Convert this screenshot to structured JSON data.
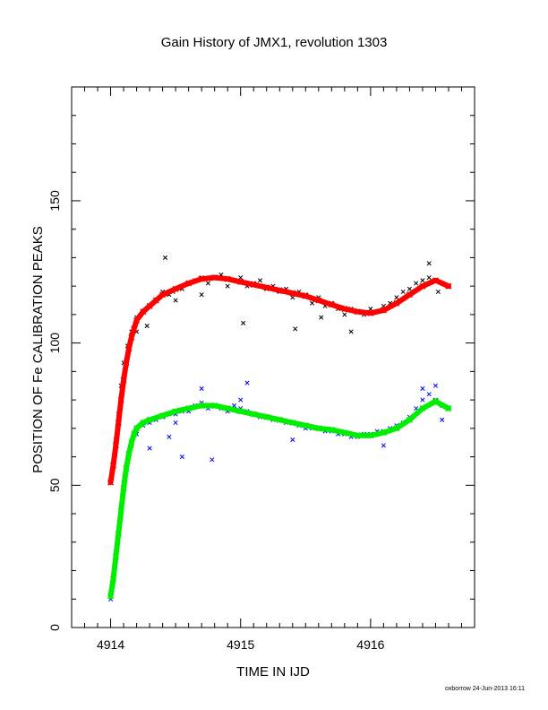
{
  "chart_data": {
    "type": "scatter",
    "title": "Gain History of JMX1, revolution 1303",
    "xlabel": "TIME IN IJD",
    "ylabel": "POSITION OF Fe CALIBRATION PEAKS",
    "footer": "oxborrow 24-Jun-2013 16:11",
    "xlim": [
      4913.7,
      4916.8
    ],
    "ylim": [
      0,
      190
    ],
    "xticks": [
      4914,
      4915,
      4916
    ],
    "xtick_labels": [
      "4914",
      "4915",
      "4916"
    ],
    "yticks": [
      0,
      50,
      100,
      150
    ],
    "ytick_labels": [
      "0",
      "50",
      "100",
      "150"
    ],
    "grid": false,
    "legend": "none",
    "series": [
      {
        "role": "upper peak measurements",
        "color": "#000000",
        "marker": "x",
        "points": [
          [
            4914.0,
            51
          ],
          [
            4914.02,
            57
          ],
          [
            4914.04,
            66
          ],
          [
            4914.06,
            75
          ],
          [
            4914.08,
            85
          ],
          [
            4914.1,
            93
          ],
          [
            4914.13,
            99
          ],
          [
            4914.16,
            104
          ],
          [
            4914.2,
            109
          ],
          [
            4914.25,
            111
          ],
          [
            4914.3,
            113
          ],
          [
            4914.35,
            115
          ],
          [
            4914.4,
            118
          ],
          [
            4914.45,
            117
          ],
          [
            4914.48,
            118
          ],
          [
            4914.5,
            115
          ],
          [
            4914.55,
            119
          ],
          [
            4914.6,
            121
          ],
          [
            4914.65,
            122
          ],
          [
            4914.7,
            123
          ],
          [
            4914.75,
            121
          ],
          [
            4914.8,
            123
          ],
          [
            4914.85,
            124
          ],
          [
            4914.9,
            120
          ],
          [
            4914.95,
            122
          ],
          [
            4915.0,
            123
          ],
          [
            4915.05,
            120
          ],
          [
            4915.1,
            121
          ],
          [
            4915.15,
            122
          ],
          [
            4915.2,
            119
          ],
          [
            4915.25,
            120
          ],
          [
            4915.3,
            118
          ],
          [
            4915.35,
            119
          ],
          [
            4915.4,
            116
          ],
          [
            4915.45,
            118
          ],
          [
            4915.5,
            117
          ],
          [
            4915.55,
            114
          ],
          [
            4915.6,
            116
          ],
          [
            4915.65,
            113
          ],
          [
            4915.7,
            114
          ],
          [
            4915.75,
            112
          ],
          [
            4915.8,
            110
          ],
          [
            4915.85,
            112
          ],
          [
            4915.9,
            111
          ],
          [
            4915.95,
            110
          ],
          [
            4916.0,
            112
          ],
          [
            4916.05,
            111
          ],
          [
            4916.1,
            113
          ],
          [
            4916.15,
            114
          ],
          [
            4916.2,
            116
          ],
          [
            4916.25,
            118
          ],
          [
            4916.3,
            119
          ],
          [
            4916.35,
            121
          ],
          [
            4916.4,
            122
          ],
          [
            4916.45,
            123
          ],
          [
            4916.5,
            122
          ],
          [
            4916.55,
            121
          ],
          [
            4914.2,
            104
          ],
          [
            4914.28,
            106
          ],
          [
            4914.42,
            130
          ],
          [
            4914.7,
            117
          ],
          [
            4915.02,
            107
          ],
          [
            4915.42,
            105
          ],
          [
            4915.62,
            109
          ],
          [
            4915.85,
            104
          ],
          [
            4916.45,
            128
          ],
          [
            4916.52,
            118
          ]
        ]
      },
      {
        "role": "upper peak fit",
        "color": "#ff0000",
        "marker": "x",
        "points": [
          [
            4914.0,
            51
          ],
          [
            4914.02,
            57
          ],
          [
            4914.04,
            64
          ],
          [
            4914.06,
            72
          ],
          [
            4914.08,
            80
          ],
          [
            4914.1,
            87
          ],
          [
            4914.12,
            93
          ],
          [
            4914.14,
            98
          ],
          [
            4914.16,
            102
          ],
          [
            4914.18,
            105
          ],
          [
            4914.2,
            108
          ],
          [
            4914.25,
            111
          ],
          [
            4914.3,
            113
          ],
          [
            4914.35,
            115
          ],
          [
            4914.4,
            117
          ],
          [
            4914.5,
            119
          ],
          [
            4914.6,
            121
          ],
          [
            4914.7,
            122.5
          ],
          [
            4914.8,
            123
          ],
          [
            4914.9,
            122.5
          ],
          [
            4915.0,
            121.5
          ],
          [
            4915.1,
            120.5
          ],
          [
            4915.2,
            119.5
          ],
          [
            4915.3,
            118.5
          ],
          [
            4915.4,
            117.5
          ],
          [
            4915.5,
            116.5
          ],
          [
            4915.6,
            115
          ],
          [
            4915.7,
            113.5
          ],
          [
            4915.8,
            112
          ],
          [
            4915.9,
            111
          ],
          [
            4916.0,
            110.5
          ],
          [
            4916.1,
            111.5
          ],
          [
            4916.2,
            114
          ],
          [
            4916.3,
            117
          ],
          [
            4916.4,
            120
          ],
          [
            4916.5,
            122
          ],
          [
            4916.6,
            120
          ]
        ]
      },
      {
        "role": "lower peak measurements",
        "color": "#0000ff",
        "marker": "x",
        "points": [
          [
            4914.0,
            10
          ],
          [
            4914.02,
            16
          ],
          [
            4914.04,
            24
          ],
          [
            4914.06,
            33
          ],
          [
            4914.08,
            42
          ],
          [
            4914.1,
            51
          ],
          [
            4914.13,
            58
          ],
          [
            4914.16,
            64
          ],
          [
            4914.2,
            68
          ],
          [
            4914.25,
            71
          ],
          [
            4914.3,
            72
          ],
          [
            4914.35,
            73
          ],
          [
            4914.4,
            74
          ],
          [
            4914.45,
            75
          ],
          [
            4914.5,
            75
          ],
          [
            4914.55,
            76
          ],
          [
            4914.6,
            76
          ],
          [
            4914.65,
            78
          ],
          [
            4914.7,
            79
          ],
          [
            4914.75,
            77
          ],
          [
            4914.8,
            78
          ],
          [
            4914.85,
            77
          ],
          [
            4914.9,
            76
          ],
          [
            4914.95,
            78
          ],
          [
            4915.0,
            77
          ],
          [
            4915.05,
            76
          ],
          [
            4915.1,
            75
          ],
          [
            4915.15,
            74
          ],
          [
            4915.2,
            74
          ],
          [
            4915.25,
            73
          ],
          [
            4915.3,
            73
          ],
          [
            4915.35,
            72
          ],
          [
            4915.4,
            72
          ],
          [
            4915.45,
            71
          ],
          [
            4915.5,
            70
          ],
          [
            4915.55,
            70
          ],
          [
            4915.6,
            70
          ],
          [
            4915.65,
            69
          ],
          [
            4915.7,
            69
          ],
          [
            4915.75,
            68
          ],
          [
            4915.8,
            68
          ],
          [
            4915.85,
            67
          ],
          [
            4915.9,
            67
          ],
          [
            4915.95,
            68
          ],
          [
            4916.0,
            68
          ],
          [
            4916.05,
            69
          ],
          [
            4916.1,
            69
          ],
          [
            4916.15,
            70
          ],
          [
            4916.2,
            71
          ],
          [
            4916.25,
            72
          ],
          [
            4916.3,
            74
          ],
          [
            4916.35,
            77
          ],
          [
            4916.4,
            80
          ],
          [
            4916.45,
            82
          ],
          [
            4916.5,
            80
          ],
          [
            4916.55,
            78
          ],
          [
            4914.3,
            63
          ],
          [
            4914.45,
            67
          ],
          [
            4914.5,
            72
          ],
          [
            4914.55,
            60
          ],
          [
            4914.78,
            59
          ],
          [
            4914.7,
            84
          ],
          [
            4915.05,
            86
          ],
          [
            4915.0,
            80
          ],
          [
            4915.4,
            66
          ],
          [
            4916.1,
            64
          ],
          [
            4916.4,
            84
          ],
          [
            4916.5,
            85
          ],
          [
            4916.55,
            73
          ]
        ]
      },
      {
        "role": "lower peak fit",
        "color": "#00ee00",
        "marker": "x",
        "points": [
          [
            4914.0,
            11
          ],
          [
            4914.02,
            17
          ],
          [
            4914.04,
            25
          ],
          [
            4914.06,
            33
          ],
          [
            4914.08,
            41
          ],
          [
            4914.1,
            49
          ],
          [
            4914.12,
            56
          ],
          [
            4914.14,
            61
          ],
          [
            4914.16,
            65
          ],
          [
            4914.18,
            68
          ],
          [
            4914.2,
            70
          ],
          [
            4914.25,
            72
          ],
          [
            4914.3,
            73
          ],
          [
            4914.4,
            74.5
          ],
          [
            4914.5,
            76
          ],
          [
            4914.6,
            77
          ],
          [
            4914.7,
            78
          ],
          [
            4914.8,
            78
          ],
          [
            4914.9,
            77
          ],
          [
            4915.0,
            76
          ],
          [
            4915.1,
            75
          ],
          [
            4915.2,
            74
          ],
          [
            4915.3,
            73
          ],
          [
            4915.4,
            72
          ],
          [
            4915.5,
            71
          ],
          [
            4915.6,
            70
          ],
          [
            4915.7,
            69.5
          ],
          [
            4915.8,
            68.5
          ],
          [
            4915.9,
            67.5
          ],
          [
            4916.0,
            67.5
          ],
          [
            4916.1,
            68.5
          ],
          [
            4916.2,
            70
          ],
          [
            4916.3,
            73
          ],
          [
            4916.4,
            77
          ],
          [
            4916.5,
            79.5
          ],
          [
            4916.6,
            77
          ]
        ]
      }
    ]
  }
}
